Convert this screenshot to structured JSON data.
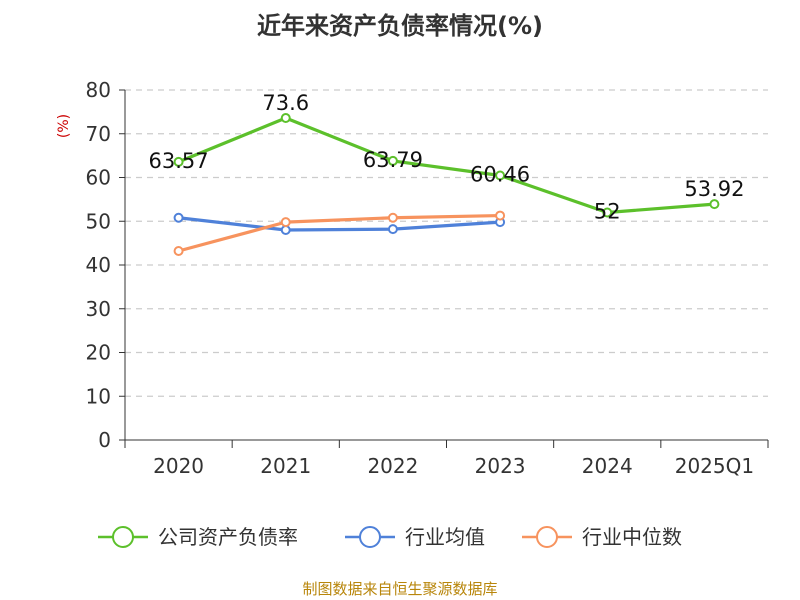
{
  "chart_data": {
    "type": "line",
    "title": "近年来资产负债率情况(%)",
    "ylabel": "(%)",
    "xlabel": "",
    "categories": [
      "2020",
      "2021",
      "2022",
      "2023",
      "2024",
      "2025Q1"
    ],
    "ylim": [
      0,
      80
    ],
    "yticks": [
      0,
      10,
      20,
      30,
      40,
      50,
      60,
      70,
      80
    ],
    "grid": true,
    "legend_position": "bottom",
    "series": [
      {
        "name": "公司资产负债率",
        "color": "#5cc02b",
        "values": [
          63.57,
          73.6,
          63.79,
          60.46,
          52,
          53.92
        ],
        "labels": [
          "63.57",
          "73.6",
          "63.79",
          "60.46",
          "52",
          "53.92"
        ]
      },
      {
        "name": "行业均值",
        "color": "#4f81d9",
        "values": [
          50.8,
          48.0,
          48.2,
          49.8,
          null,
          null
        ],
        "labels": []
      },
      {
        "name": "行业中位数",
        "color": "#f7935e",
        "values": [
          43.2,
          49.8,
          50.8,
          51.3,
          null,
          null
        ],
        "labels": []
      }
    ]
  },
  "source": "制图数据来自恒生聚源数据库"
}
